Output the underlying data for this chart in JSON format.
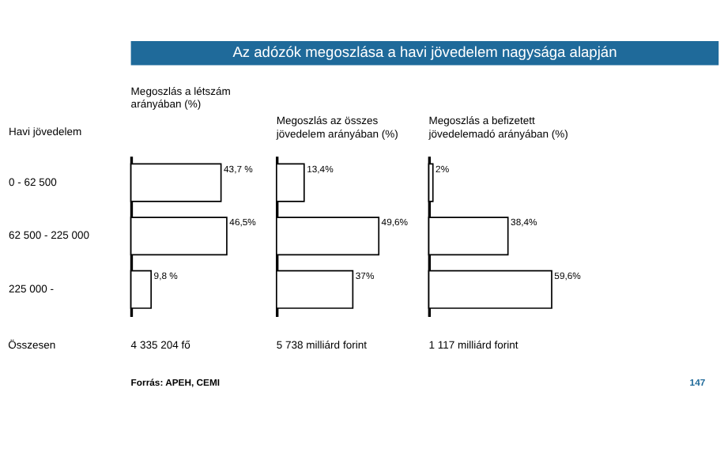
{
  "chart_data": [
    {
      "type": "other",
      "title": "Az adózók megoszlása a havi jövedelem nagysága alapján",
      "annotations": [
        "Forrás: APEH, CEMI",
        "147"
      ]
    },
    {
      "type": "bar",
      "orientation": "horizontal",
      "title": "Megoszlás a létszám\narányában (%)",
      "ylabel": "Havi jövedelem",
      "categories": [
        "0 - 62 500",
        "62 500 - 225 000",
        "225 000 -"
      ],
      "values": [
        43.7,
        46.5,
        9.8
      ],
      "value_labels": [
        "43,7 %",
        "46,5%",
        "9,8 %"
      ],
      "color": "#ffffff",
      "tick_labels": "y",
      "annotations": [
        "Összesen",
        "4 335 204 fő"
      ]
    },
    {
      "type": "bar",
      "orientation": "horizontal",
      "title": "Megoszlás az összes\njövedelem arányában (%)",
      "categories": [
        null,
        null,
        null
      ],
      "values": [
        13.4,
        49.6,
        37
      ],
      "value_labels": [
        "13,4%",
        "49,6%",
        "37%"
      ],
      "color": "#ffffff",
      "tick_labels": false,
      "annotations": [
        "5 738 milliárd forint"
      ]
    },
    {
      "type": "bar",
      "orientation": "horizontal",
      "title": "Megoszlás a befizetett\njövedelemadó arányában (%)",
      "categories": [
        null,
        null,
        null
      ],
      "values": [
        2,
        38.4,
        59.6
      ],
      "value_labels": [
        "2%",
        "38,4%",
        "59,6%"
      ],
      "color": "#ffffff",
      "tick_labels": false,
      "annotations": [
        "1 117 milliárd forint"
      ]
    }
  ]
}
